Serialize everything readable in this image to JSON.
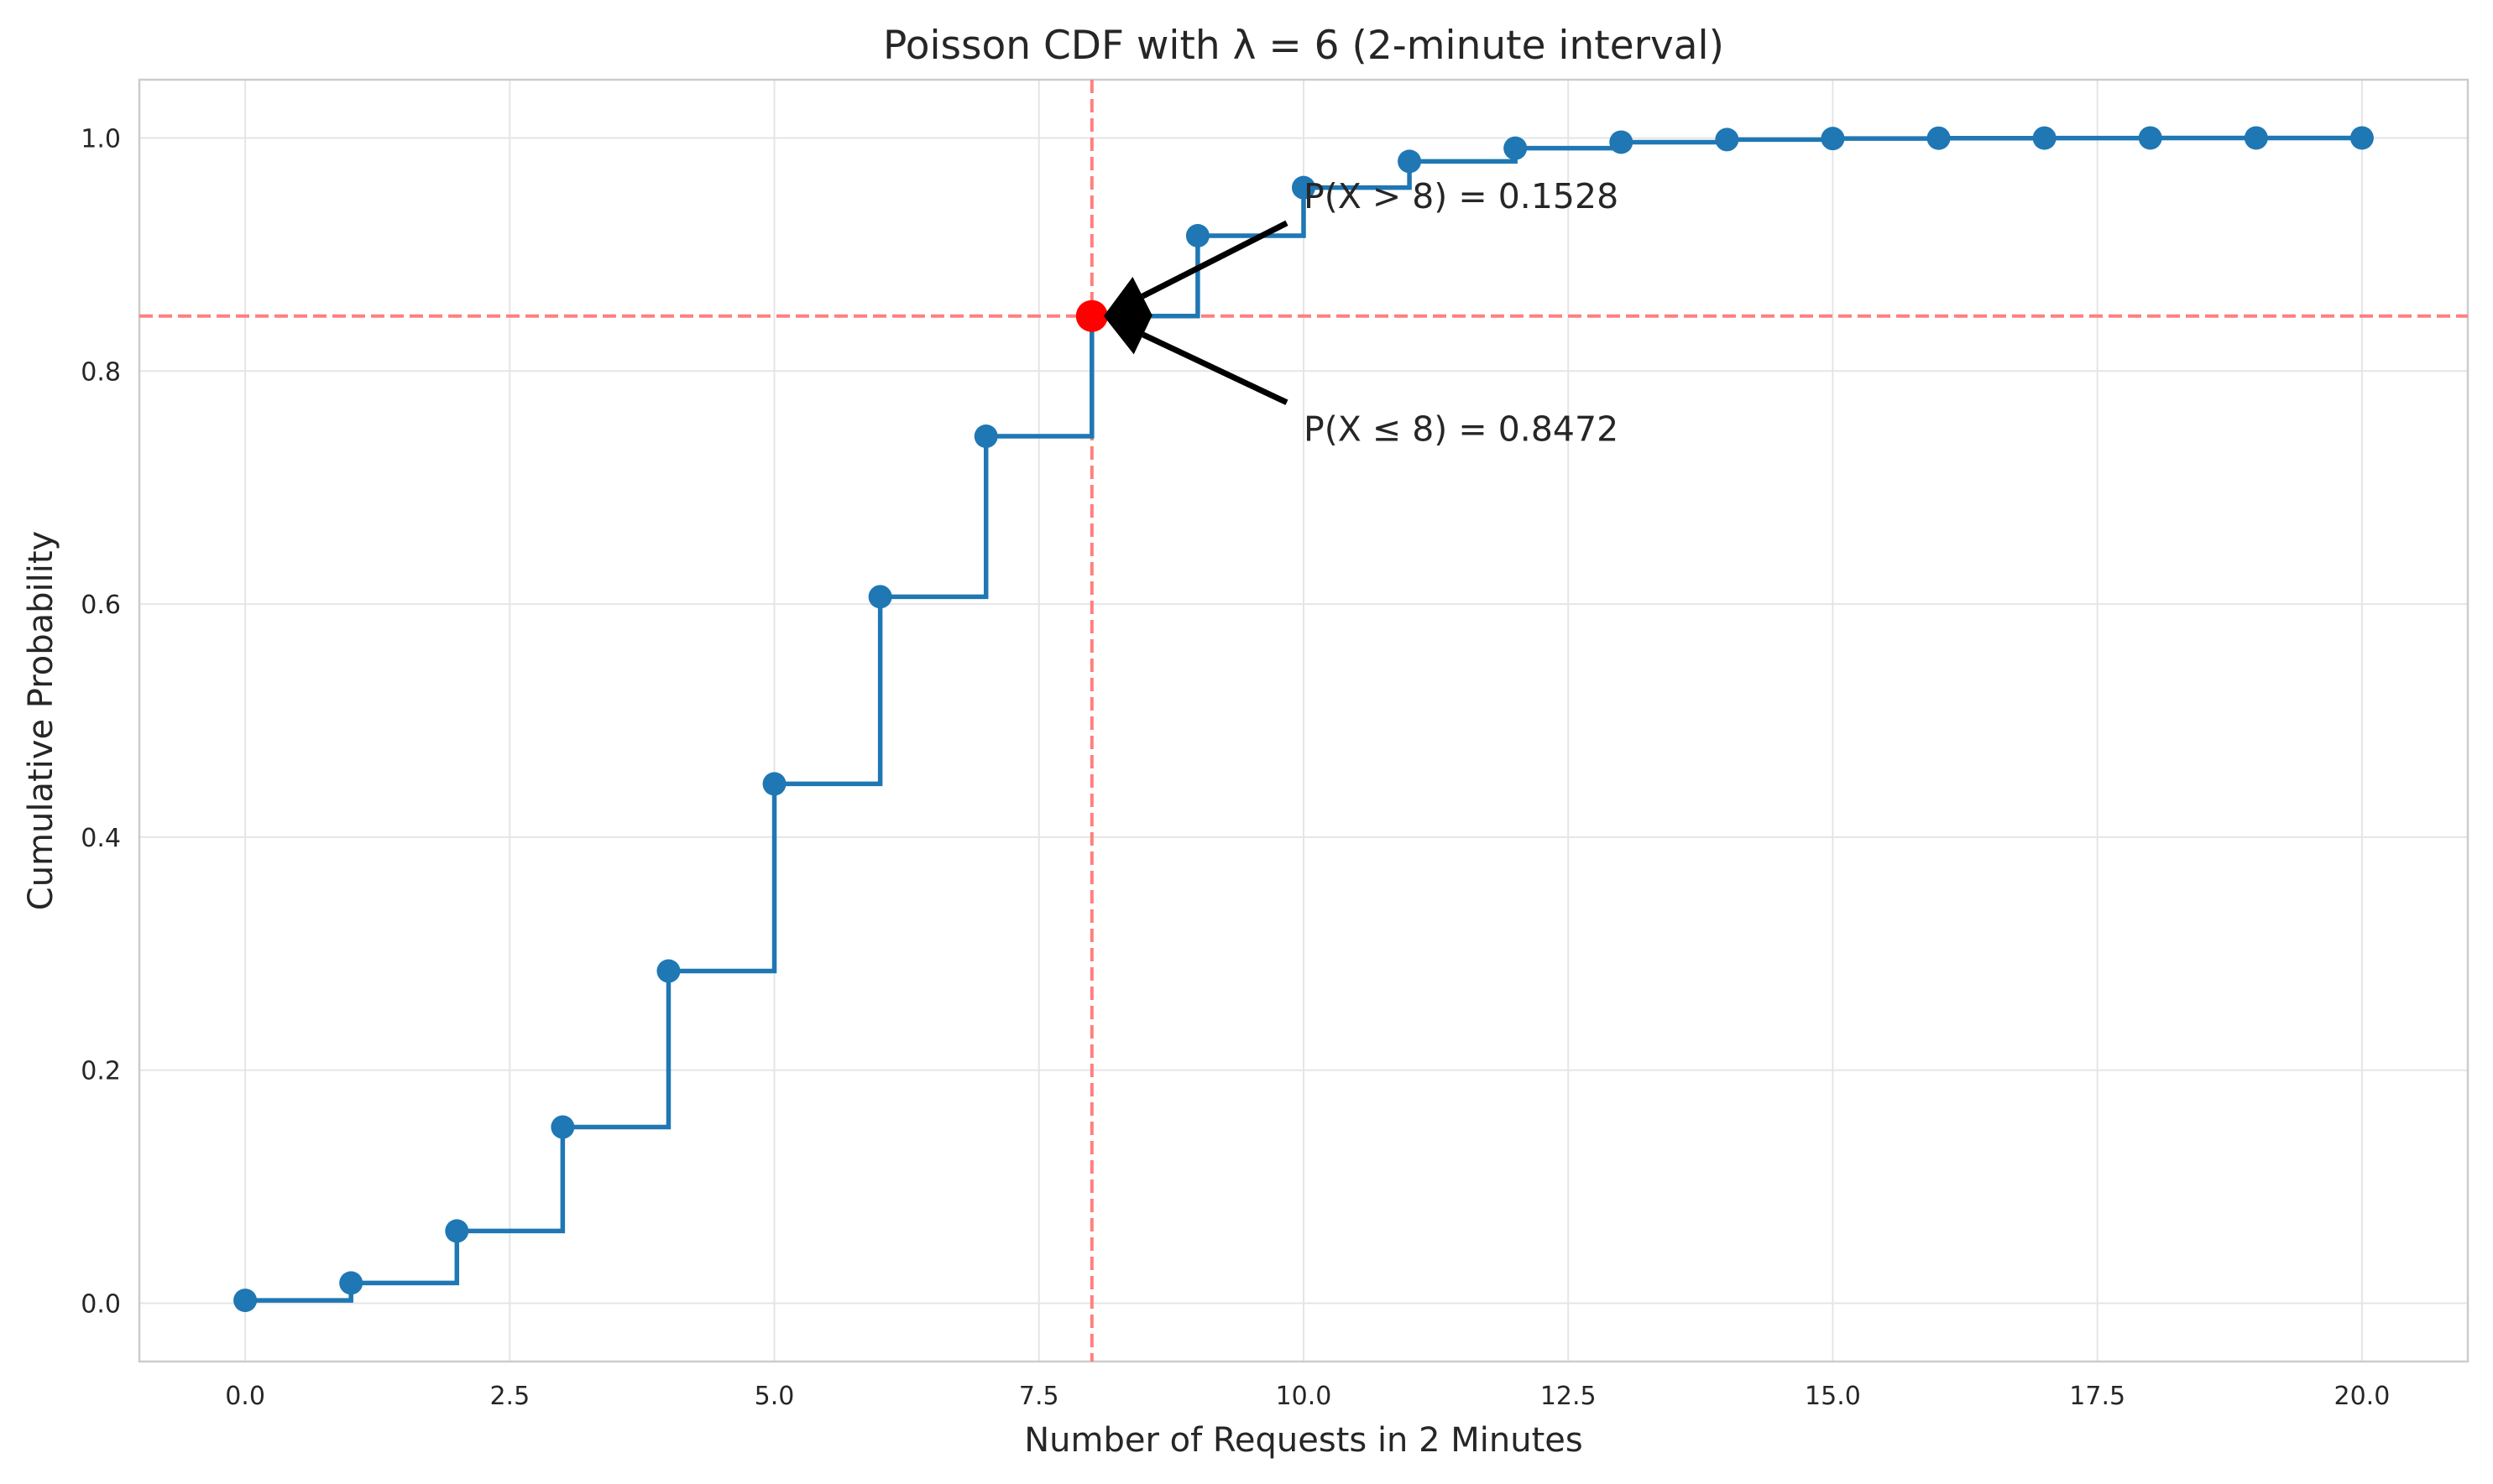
{
  "chart_data": {
    "type": "line",
    "subtype": "step-post with markers",
    "title": "Poisson CDF with λ = 6 (2-minute interval)",
    "xlabel": "Number of Requests in 2 Minutes",
    "ylabel": "Cumulative Probability",
    "xlim": [
      -1,
      21
    ],
    "ylim": [
      -0.05,
      1.05
    ],
    "xticks": [
      0,
      2.5,
      5,
      7.5,
      10,
      12.5,
      15,
      17.5,
      20
    ],
    "xtick_labels": [
      "0.0",
      "2.5",
      "5.0",
      "7.5",
      "10.0",
      "12.5",
      "15.0",
      "17.5",
      "20.0"
    ],
    "yticks": [
      0,
      0.2,
      0.4,
      0.6,
      0.8,
      1.0
    ],
    "ytick_labels": [
      "0.0",
      "0.2",
      "0.4",
      "0.6",
      "0.8",
      "1.0"
    ],
    "grid": true,
    "legend": "none",
    "series": [
      {
        "color": "#1f77b4",
        "x": [
          0,
          1,
          2,
          3,
          4,
          5,
          6,
          7,
          8,
          9,
          10,
          11,
          12,
          13,
          14,
          15,
          16,
          17,
          18,
          19,
          20
        ],
        "y": [
          0.0025,
          0.0174,
          0.062,
          0.1512,
          0.2851,
          0.4457,
          0.6063,
          0.744,
          0.8472,
          0.9161,
          0.9574,
          0.9799,
          0.9912,
          0.9964,
          0.9986,
          0.9995,
          0.9998,
          0.9999,
          1.0,
          1.0,
          1.0
        ]
      }
    ],
    "highlight_point": {
      "x": 8,
      "y": 0.8472,
      "color": "#ff0000"
    },
    "reference_lines": {
      "vertical_x": 8,
      "horizontal_y": 0.8472,
      "color": "#ff7f7f",
      "style": "dashed"
    },
    "annotations": [
      {
        "text": "P(X ≤ 8) = 0.8472",
        "x": 10,
        "y": 0.75,
        "arrow_to": [
          8,
          0.8472
        ]
      },
      {
        "text": "P(X > 8) = 0.1528",
        "x": 10,
        "y": 0.95,
        "arrow_to": [
          8,
          0.8472
        ]
      }
    ],
    "colors": {
      "line": "#1f77b4",
      "highlight": "#ff0000",
      "reference": "#ff7f7f",
      "grid": "#e5e5e5",
      "spine": "#cccccc",
      "text": "#262626",
      "arrow": "#000000"
    }
  }
}
